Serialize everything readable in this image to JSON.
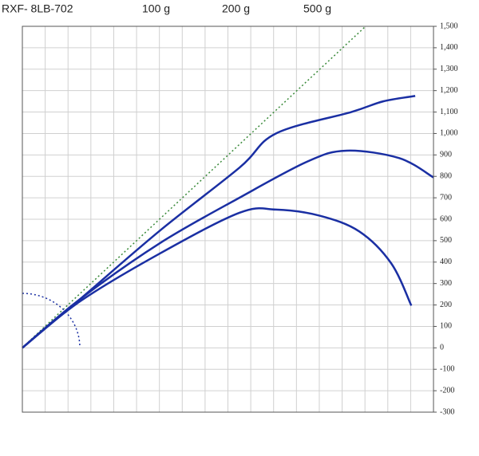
{
  "chart_data": {
    "type": "line",
    "title": "RXF- 8LB-702",
    "series": [
      {
        "name": "100 g",
        "color": "#1a2fa3",
        "x": [
          0,
          250,
          600,
          950,
          1110,
          1440,
          1580,
          1720
        ],
        "values": [
          0,
          225,
          545,
          840,
          1000,
          1100,
          1150,
          1175
        ]
      },
      {
        "name": "200 g",
        "color": "#1a2fa3",
        "x": [
          0,
          250,
          600,
          950,
          1250,
          1420,
          1650,
          1800
        ],
        "values": [
          0,
          225,
          487,
          700,
          870,
          920,
          885,
          795
        ]
      },
      {
        "name": "500 g",
        "color": "#1a2fa3",
        "x": [
          0,
          250,
          600,
          950,
          1110,
          1300,
          1475,
          1615,
          1703
        ],
        "values": [
          0,
          215,
          439,
          630,
          645,
          617,
          543,
          394,
          197
        ]
      }
    ],
    "xlim": [
      0,
      1800
    ],
    "ylim": [
      -300,
      1500
    ],
    "yticks": [
      -300,
      -200,
      -100,
      0,
      100,
      200,
      300,
      400,
      500,
      600,
      700,
      800,
      900,
      {
        "value": 1000,
        "label": "1,000"
      },
      {
        "value": 1100,
        "label": "1,100"
      },
      {
        "value": 1200,
        "label": "1,200"
      },
      {
        "value": 1300,
        "label": "1,300"
      },
      {
        "value": 1400,
        "label": "1,400"
      },
      {
        "value": 1500,
        "label": "1,500"
      }
    ],
    "grid": true
  }
}
